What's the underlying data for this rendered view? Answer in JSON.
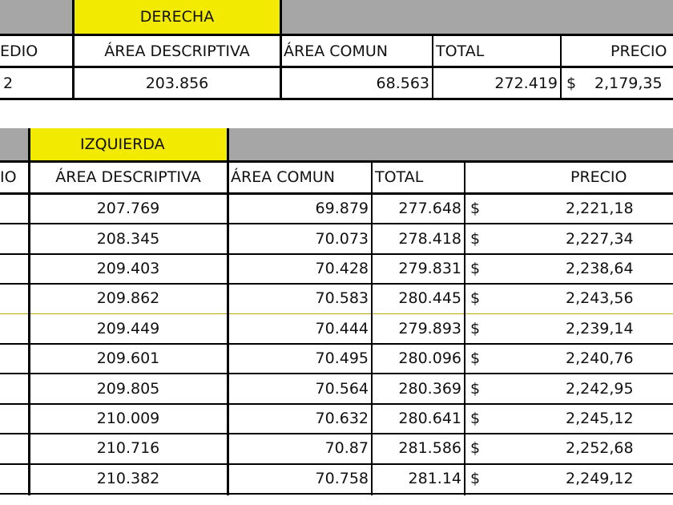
{
  "derecha": {
    "title": "DERECHA",
    "headers": {
      "col0": "EDIO",
      "area_descriptiva": "ÁREA DESCRIPTIVA",
      "area_comun": "ÁREA COMUN",
      "total": "TOTAL",
      "precio": "PRECIO"
    },
    "row": {
      "col0": "2",
      "area_descriptiva": "203.856",
      "area_comun": "68.563",
      "total": "272.419",
      "currency": "$",
      "precio": "2,179,35"
    }
  },
  "izquierda": {
    "title": "IZQUIERDA",
    "headers": {
      "col0": "IO",
      "area_descriptiva": "ÁREA DESCRIPTIVA",
      "area_comun": "ÁREA COMUN",
      "total": "TOTAL",
      "precio": "PRECIO"
    },
    "currency": "$",
    "rows": [
      {
        "area_descriptiva": "207.769",
        "area_comun": "69.879",
        "total": "277.648",
        "precio": "2,221,18"
      },
      {
        "area_descriptiva": "208.345",
        "area_comun": "70.073",
        "total": "278.418",
        "precio": "2,227,34"
      },
      {
        "area_descriptiva": "209.403",
        "area_comun": "70.428",
        "total": "279.831",
        "precio": "2,238,64"
      },
      {
        "area_descriptiva": "209.862",
        "area_comun": "70.583",
        "total": "280.445",
        "precio": "2,243,56"
      },
      {
        "area_descriptiva": "209.449",
        "area_comun": "70.444",
        "total": "279.893",
        "precio": "2,239,14"
      },
      {
        "area_descriptiva": "209.601",
        "area_comun": "70.495",
        "total": "280.096",
        "precio": "2,240,76"
      },
      {
        "area_descriptiva": "209.805",
        "area_comun": "70.564",
        "total": "280.369",
        "precio": "2,242,95"
      },
      {
        "area_descriptiva": "210.009",
        "area_comun": "70.632",
        "total": "280.641",
        "precio": "2,245,12"
      },
      {
        "area_descriptiva": "210.716",
        "area_comun": "70.87",
        "total": "281.586",
        "precio": "2,252,68"
      },
      {
        "area_descriptiva": "210.382",
        "area_comun": "70.758",
        "total": "281.14",
        "precio": "2,249,12"
      }
    ]
  },
  "colors": {
    "header_gray": "#a6a6a6",
    "highlight_yellow": "#f2ea00",
    "border": "#000000"
  }
}
